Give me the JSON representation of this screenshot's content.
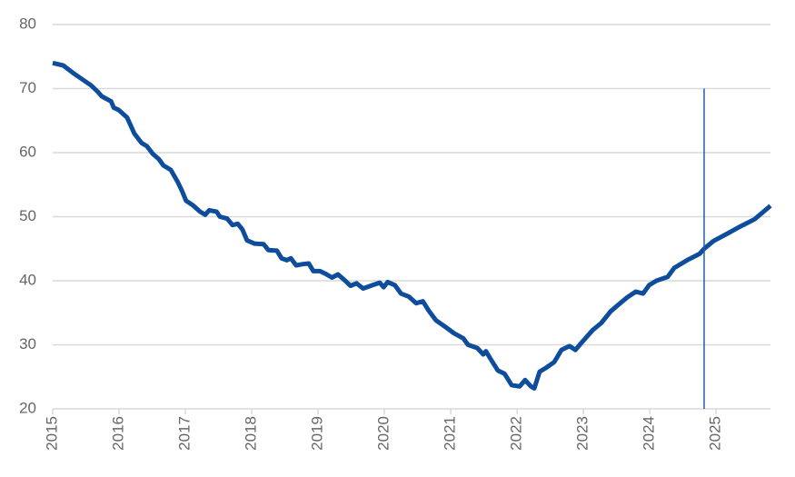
{
  "chart_data": {
    "type": "line",
    "x": [
      2015.0,
      2015.16,
      2015.3,
      2015.41,
      2015.58,
      2015.68,
      2015.74,
      2015.88,
      2015.92,
      2015.99,
      2016.12,
      2016.23,
      2016.34,
      2016.42,
      2016.51,
      2016.6,
      2016.67,
      2016.78,
      2016.88,
      2016.95,
      2017.01,
      2017.11,
      2017.22,
      2017.3,
      2017.36,
      2017.47,
      2017.52,
      2017.63,
      2017.71,
      2017.79,
      2017.86,
      2017.93,
      2018.04,
      2018.18,
      2018.25,
      2018.38,
      2018.45,
      2018.53,
      2018.59,
      2018.67,
      2018.77,
      2018.86,
      2018.93,
      2019.03,
      2019.11,
      2019.21,
      2019.3,
      2019.41,
      2019.49,
      2019.58,
      2019.68,
      2019.82,
      2019.93,
      2019.99,
      2020.05,
      2020.16,
      2020.25,
      2020.37,
      2020.48,
      2020.58,
      2020.67,
      2020.78,
      2020.92,
      2021.05,
      2021.19,
      2021.26,
      2021.4,
      2021.49,
      2021.53,
      2021.6,
      2021.71,
      2021.81,
      2021.92,
      2022.04,
      2022.12,
      2022.21,
      2022.26,
      2022.34,
      2022.45,
      2022.56,
      2022.67,
      2022.79,
      2022.88,
      2022.97,
      2023.14,
      2023.27,
      2023.41,
      2023.52,
      2023.66,
      2023.79,
      2023.9,
      2023.99,
      2024.1,
      2024.27,
      2024.37,
      2024.48,
      2024.58,
      2024.75,
      2024.82,
      2024.96,
      2025.16,
      2025.37,
      2025.58,
      2025.82
    ],
    "series": [
      {
        "color": "#0e4c9c",
        "values": [
          74,
          73.6,
          72.5,
          71.7,
          70.5,
          69.5,
          68.8,
          68.0,
          67,
          66.7,
          65.5,
          63,
          61.5,
          61,
          59.8,
          59,
          58,
          57.3,
          55.5,
          54,
          52.5,
          51.8,
          50.8,
          50.3,
          51,
          50.8,
          50,
          49.7,
          48.7,
          48.9,
          48,
          46.3,
          45.8,
          45.7,
          44.8,
          44.7,
          43.5,
          43.2,
          43.5,
          42.4,
          42.6,
          42.7,
          41.5,
          41.5,
          41.1,
          40.5,
          41,
          40,
          39.2,
          39.6,
          38.8,
          39.3,
          39.7,
          39,
          39.8,
          39.3,
          38,
          37.5,
          36.5,
          36.8,
          35.3,
          33.8,
          32.8,
          31.8,
          31,
          30,
          29.5,
          28.5,
          29,
          27.8,
          26,
          25.5,
          23.7,
          23.5,
          24.5,
          23.5,
          23.2,
          25.8,
          26.5,
          27.3,
          29.2,
          29.8,
          29.2,
          30.3,
          32.3,
          33.4,
          35.2,
          36.2,
          37.4,
          38.3,
          38,
          39.3,
          40,
          40.6,
          42,
          42.7,
          43.3,
          44.2,
          45,
          46.2,
          47.3,
          48.5,
          49.6,
          51.7
        ]
      }
    ],
    "xlim": [
      2015,
      2025.82
    ],
    "xticks": [
      2015,
      2016,
      2017,
      2018,
      2019,
      2020,
      2021,
      2022,
      2023,
      2024,
      2025
    ],
    "ylim": [
      20,
      80
    ],
    "yticks": [
      20,
      30,
      40,
      50,
      60,
      70,
      80
    ],
    "grid": true,
    "vline": {
      "x": 2024.82,
      "top": 70,
      "color": "#1f5fb0"
    }
  }
}
